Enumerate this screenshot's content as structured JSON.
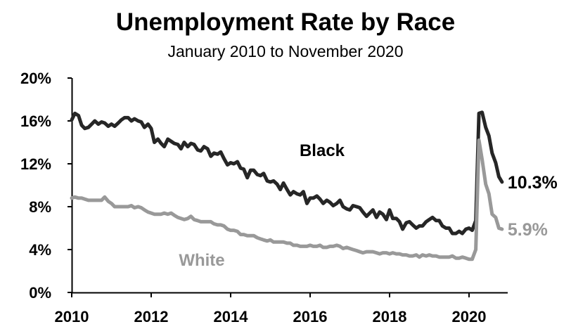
{
  "chart_data": {
    "type": "line",
    "title": "Unemployment Rate by Race",
    "subtitle": "January 2010 to November 2020",
    "xlabel": "",
    "ylabel": "",
    "xlim": [
      2010,
      2020.9
    ],
    "ylim": [
      0,
      20
    ],
    "x_ticks": [
      2010,
      2012,
      2014,
      2016,
      2018,
      2020
    ],
    "x_tick_labels": [
      "2010",
      "2012",
      "2014",
      "2016",
      "2018",
      "2020"
    ],
    "y_ticks": [
      0,
      4,
      8,
      12,
      16,
      20
    ],
    "y_tick_labels": [
      "0%",
      "4%",
      "8%",
      "12%",
      "16%",
      "20%"
    ],
    "grid": false,
    "legend": "none",
    "series": [
      {
        "name": "Black",
        "color": "#262626",
        "end_label": "10.3%",
        "points": [
          [
            2010.0,
            16.1
          ],
          [
            2010.08,
            16.7
          ],
          [
            2010.17,
            16.5
          ],
          [
            2010.25,
            15.6
          ],
          [
            2010.33,
            15.3
          ],
          [
            2010.42,
            15.4
          ],
          [
            2010.5,
            15.7
          ],
          [
            2010.58,
            16.0
          ],
          [
            2010.67,
            15.7
          ],
          [
            2010.75,
            15.9
          ],
          [
            2010.83,
            15.8
          ],
          [
            2010.92,
            15.5
          ],
          [
            2011.0,
            15.7
          ],
          [
            2011.08,
            15.5
          ],
          [
            2011.17,
            15.8
          ],
          [
            2011.25,
            16.1
          ],
          [
            2011.33,
            16.3
          ],
          [
            2011.42,
            16.3
          ],
          [
            2011.5,
            16.0
          ],
          [
            2011.58,
            16.2
          ],
          [
            2011.67,
            16.0
          ],
          [
            2011.75,
            15.9
          ],
          [
            2011.83,
            15.4
          ],
          [
            2011.92,
            15.7
          ],
          [
            2012.0,
            15.3
          ],
          [
            2012.08,
            14.0
          ],
          [
            2012.17,
            14.3
          ],
          [
            2012.25,
            13.9
          ],
          [
            2012.33,
            13.6
          ],
          [
            2012.42,
            14.3
          ],
          [
            2012.5,
            14.1
          ],
          [
            2012.58,
            13.9
          ],
          [
            2012.67,
            13.8
          ],
          [
            2012.75,
            13.4
          ],
          [
            2012.83,
            14.0
          ],
          [
            2012.92,
            13.6
          ],
          [
            2013.0,
            13.9
          ],
          [
            2013.08,
            13.8
          ],
          [
            2013.17,
            13.3
          ],
          [
            2013.25,
            13.2
          ],
          [
            2013.33,
            13.6
          ],
          [
            2013.42,
            13.4
          ],
          [
            2013.5,
            12.7
          ],
          [
            2013.58,
            13.0
          ],
          [
            2013.67,
            12.9
          ],
          [
            2013.75,
            13.1
          ],
          [
            2013.83,
            12.5
          ],
          [
            2013.92,
            11.9
          ],
          [
            2014.0,
            12.1
          ],
          [
            2014.08,
            12.0
          ],
          [
            2014.17,
            12.2
          ],
          [
            2014.25,
            11.6
          ],
          [
            2014.33,
            11.5
          ],
          [
            2014.42,
            10.7
          ],
          [
            2014.5,
            11.4
          ],
          [
            2014.58,
            11.4
          ],
          [
            2014.67,
            11.0
          ],
          [
            2014.75,
            10.9
          ],
          [
            2014.83,
            11.1
          ],
          [
            2014.92,
            10.4
          ],
          [
            2015.0,
            10.3
          ],
          [
            2015.08,
            10.4
          ],
          [
            2015.17,
            10.1
          ],
          [
            2015.25,
            9.6
          ],
          [
            2015.33,
            10.2
          ],
          [
            2015.42,
            9.6
          ],
          [
            2015.5,
            9.1
          ],
          [
            2015.58,
            9.4
          ],
          [
            2015.67,
            9.2
          ],
          [
            2015.75,
            9.1
          ],
          [
            2015.83,
            9.4
          ],
          [
            2015.92,
            8.3
          ],
          [
            2016.0,
            8.8
          ],
          [
            2016.08,
            8.8
          ],
          [
            2016.17,
            9.0
          ],
          [
            2016.25,
            8.7
          ],
          [
            2016.33,
            8.3
          ],
          [
            2016.42,
            8.6
          ],
          [
            2016.5,
            8.4
          ],
          [
            2016.58,
            8.1
          ],
          [
            2016.67,
            8.3
          ],
          [
            2016.75,
            8.6
          ],
          [
            2016.83,
            8.0
          ],
          [
            2016.92,
            7.8
          ],
          [
            2017.0,
            7.7
          ],
          [
            2017.08,
            8.1
          ],
          [
            2017.17,
            8.0
          ],
          [
            2017.25,
            7.9
          ],
          [
            2017.33,
            7.5
          ],
          [
            2017.42,
            7.1
          ],
          [
            2017.5,
            7.4
          ],
          [
            2017.58,
            7.7
          ],
          [
            2017.67,
            7.0
          ],
          [
            2017.75,
            7.5
          ],
          [
            2017.83,
            7.3
          ],
          [
            2017.92,
            6.8
          ],
          [
            2018.0,
            7.7
          ],
          [
            2018.08,
            6.9
          ],
          [
            2018.17,
            6.9
          ],
          [
            2018.25,
            6.6
          ],
          [
            2018.33,
            5.9
          ],
          [
            2018.42,
            6.5
          ],
          [
            2018.5,
            6.6
          ],
          [
            2018.58,
            6.3
          ],
          [
            2018.67,
            6.0
          ],
          [
            2018.75,
            6.2
          ],
          [
            2018.83,
            6.2
          ],
          [
            2018.92,
            6.6
          ],
          [
            2019.0,
            6.8
          ],
          [
            2019.08,
            7.0
          ],
          [
            2019.17,
            6.7
          ],
          [
            2019.25,
            6.7
          ],
          [
            2019.33,
            6.2
          ],
          [
            2019.42,
            6.0
          ],
          [
            2019.5,
            6.0
          ],
          [
            2019.58,
            5.5
          ],
          [
            2019.67,
            5.5
          ],
          [
            2019.75,
            5.7
          ],
          [
            2019.83,
            5.5
          ],
          [
            2019.92,
            5.9
          ],
          [
            2020.0,
            6.0
          ],
          [
            2020.08,
            5.8
          ],
          [
            2020.17,
            6.7
          ],
          [
            2020.25,
            16.7
          ],
          [
            2020.33,
            16.8
          ],
          [
            2020.42,
            15.4
          ],
          [
            2020.5,
            14.6
          ],
          [
            2020.58,
            13.0
          ],
          [
            2020.67,
            12.1
          ],
          [
            2020.75,
            10.8
          ],
          [
            2020.83,
            10.3
          ]
        ]
      },
      {
        "name": "White",
        "color": "#999999",
        "end_label": "5.9%",
        "points": [
          [
            2010.0,
            8.8
          ],
          [
            2010.08,
            8.9
          ],
          [
            2010.17,
            8.8
          ],
          [
            2010.25,
            8.8
          ],
          [
            2010.33,
            8.7
          ],
          [
            2010.42,
            8.6
          ],
          [
            2010.5,
            8.6
          ],
          [
            2010.58,
            8.6
          ],
          [
            2010.67,
            8.6
          ],
          [
            2010.75,
            8.6
          ],
          [
            2010.83,
            8.9
          ],
          [
            2010.92,
            8.5
          ],
          [
            2011.0,
            8.3
          ],
          [
            2011.08,
            8.0
          ],
          [
            2011.17,
            8.0
          ],
          [
            2011.25,
            8.0
          ],
          [
            2011.33,
            8.0
          ],
          [
            2011.42,
            8.0
          ],
          [
            2011.5,
            8.1
          ],
          [
            2011.58,
            7.9
          ],
          [
            2011.67,
            8.0
          ],
          [
            2011.75,
            7.9
          ],
          [
            2011.83,
            7.7
          ],
          [
            2011.92,
            7.5
          ],
          [
            2012.0,
            7.4
          ],
          [
            2012.08,
            7.3
          ],
          [
            2012.17,
            7.3
          ],
          [
            2012.25,
            7.3
          ],
          [
            2012.33,
            7.4
          ],
          [
            2012.42,
            7.3
          ],
          [
            2012.5,
            7.4
          ],
          [
            2012.58,
            7.2
          ],
          [
            2012.67,
            7.0
          ],
          [
            2012.75,
            6.9
          ],
          [
            2012.83,
            6.8
          ],
          [
            2012.92,
            6.9
          ],
          [
            2013.0,
            7.1
          ],
          [
            2013.08,
            6.8
          ],
          [
            2013.17,
            6.7
          ],
          [
            2013.25,
            6.6
          ],
          [
            2013.33,
            6.6
          ],
          [
            2013.42,
            6.6
          ],
          [
            2013.5,
            6.6
          ],
          [
            2013.58,
            6.4
          ],
          [
            2013.67,
            6.3
          ],
          [
            2013.75,
            6.3
          ],
          [
            2013.83,
            6.2
          ],
          [
            2013.92,
            5.9
          ],
          [
            2014.0,
            5.8
          ],
          [
            2014.08,
            5.8
          ],
          [
            2014.17,
            5.7
          ],
          [
            2014.25,
            5.4
          ],
          [
            2014.33,
            5.4
          ],
          [
            2014.42,
            5.3
          ],
          [
            2014.5,
            5.3
          ],
          [
            2014.58,
            5.3
          ],
          [
            2014.67,
            5.1
          ],
          [
            2014.75,
            5.0
          ],
          [
            2014.83,
            4.9
          ],
          [
            2014.92,
            4.8
          ],
          [
            2015.0,
            4.9
          ],
          [
            2015.08,
            4.7
          ],
          [
            2015.17,
            4.7
          ],
          [
            2015.25,
            4.7
          ],
          [
            2015.33,
            4.7
          ],
          [
            2015.42,
            4.6
          ],
          [
            2015.5,
            4.6
          ],
          [
            2015.58,
            4.4
          ],
          [
            2015.67,
            4.4
          ],
          [
            2015.75,
            4.3
          ],
          [
            2015.83,
            4.3
          ],
          [
            2015.92,
            4.3
          ],
          [
            2016.0,
            4.4
          ],
          [
            2016.08,
            4.3
          ],
          [
            2016.17,
            4.3
          ],
          [
            2016.25,
            4.4
          ],
          [
            2016.33,
            4.2
          ],
          [
            2016.42,
            4.2
          ],
          [
            2016.5,
            4.3
          ],
          [
            2016.58,
            4.3
          ],
          [
            2016.67,
            4.4
          ],
          [
            2016.75,
            4.3
          ],
          [
            2016.83,
            4.1
          ],
          [
            2016.92,
            4.2
          ],
          [
            2017.0,
            4.1
          ],
          [
            2017.08,
            4.0
          ],
          [
            2017.17,
            3.9
          ],
          [
            2017.25,
            3.8
          ],
          [
            2017.33,
            3.7
          ],
          [
            2017.42,
            3.8
          ],
          [
            2017.5,
            3.8
          ],
          [
            2017.58,
            3.8
          ],
          [
            2017.67,
            3.7
          ],
          [
            2017.75,
            3.6
          ],
          [
            2017.83,
            3.7
          ],
          [
            2017.92,
            3.7
          ],
          [
            2018.0,
            3.6
          ],
          [
            2018.08,
            3.7
          ],
          [
            2018.17,
            3.6
          ],
          [
            2018.25,
            3.6
          ],
          [
            2018.33,
            3.5
          ],
          [
            2018.42,
            3.5
          ],
          [
            2018.5,
            3.4
          ],
          [
            2018.58,
            3.4
          ],
          [
            2018.67,
            3.5
          ],
          [
            2018.75,
            3.3
          ],
          [
            2018.83,
            3.5
          ],
          [
            2018.92,
            3.4
          ],
          [
            2019.0,
            3.5
          ],
          [
            2019.08,
            3.4
          ],
          [
            2019.17,
            3.4
          ],
          [
            2019.25,
            3.3
          ],
          [
            2019.33,
            3.3
          ],
          [
            2019.42,
            3.3
          ],
          [
            2019.5,
            3.3
          ],
          [
            2019.58,
            3.4
          ],
          [
            2019.67,
            3.2
          ],
          [
            2019.75,
            3.2
          ],
          [
            2019.83,
            3.3
          ],
          [
            2019.92,
            3.2
          ],
          [
            2020.0,
            3.1
          ],
          [
            2020.08,
            3.1
          ],
          [
            2020.17,
            4.0
          ],
          [
            2020.25,
            14.2
          ],
          [
            2020.33,
            12.4
          ],
          [
            2020.42,
            10.1
          ],
          [
            2020.5,
            9.2
          ],
          [
            2020.58,
            7.3
          ],
          [
            2020.67,
            7.0
          ],
          [
            2020.75,
            6.0
          ],
          [
            2020.83,
            5.9
          ]
        ]
      }
    ]
  }
}
